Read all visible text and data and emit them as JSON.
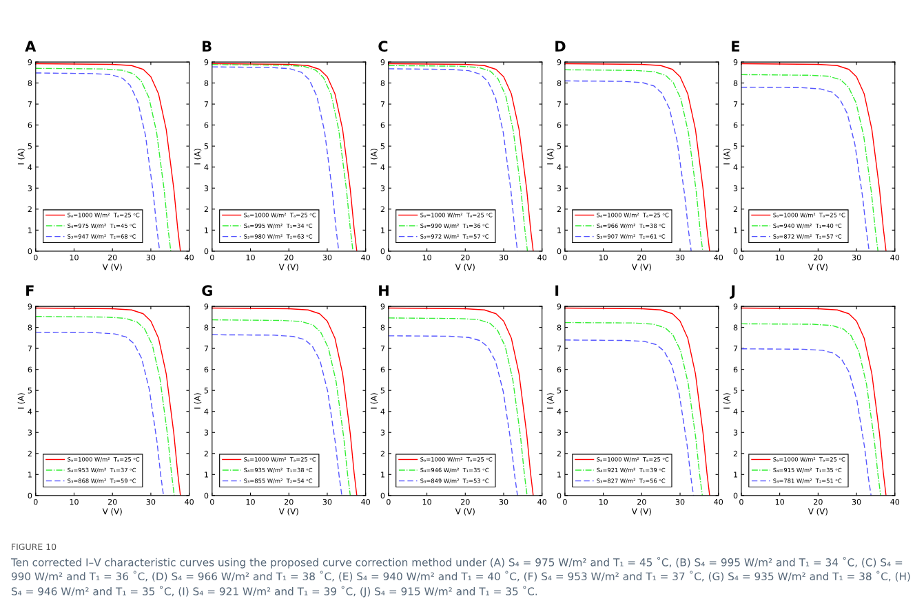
{
  "chart_data": [
    {
      "type": "line",
      "title": "A",
      "xlabel": "V (V)",
      "ylabel": "I (A)",
      "xlim": [
        0,
        40
      ],
      "ylim": [
        0,
        9
      ],
      "xticks": [
        0,
        10,
        20,
        30,
        40
      ],
      "yticks": [
        0,
        1,
        2,
        3,
        4,
        5,
        6,
        7,
        8,
        9
      ],
      "grid": false,
      "legend": "bottom left",
      "marker": "none",
      "annotations": [
        "FIGURE 10",
        "Ten corrected I–V characteristic curves using the proposed curve correction method under (A) S₄ = 975 W/m² and T₁ = 45 ˚C, (B) S₄ = 995 W/m² and T₁ = 34 ˚C, (C) S₄ = 990 W/m² and T₁ = 36 ˚C, (D) S₄ = 966 W/m² and T₁ = 38 ˚C, (E) S₄ = 940 W/m² and T₁ = 40 ˚C, (F) S₄ = 953 W/m² and T₁ = 37 ˚C, (G) S₄ = 935 W/m² and T₁ = 38 ˚C, (H) S₄ = 946 W/m² and T₁ = 35 ˚C, (I) S₄ = 921 W/m² and T₁ = 39 ˚C, (J) S₄ = 915 W/m² and T₁ = 35 ˚C."
      ],
      "series": [
        {
          "name": "Sₐ=1000 W/m²  Tₐ=25 ᵒC",
          "color": "#ff0000",
          "line_style": "solid",
          "x": [
            0,
            20,
            25,
            28,
            30,
            32,
            34,
            35,
            36,
            37,
            37.7
          ],
          "values": [
            8.92,
            8.89,
            8.83,
            8.65,
            8.3,
            7.49,
            5.8,
            4.37,
            2.94,
            1.07,
            0
          ]
        },
        {
          "name": "S₄=975 W/m²  T₁=45 ᵒC",
          "color": "#33ee33",
          "line_style": "dashdot",
          "x": [
            0,
            17.5,
            22.5,
            25.5,
            27.5,
            29.5,
            31.5,
            32.5,
            33.5,
            34.5,
            35.2
          ],
          "values": [
            8.7,
            8.67,
            8.61,
            8.44,
            8.09,
            7.31,
            5.66,
            4.26,
            2.87,
            1.04,
            0
          ]
        },
        {
          "name": "S₃=947 W/m²  T₂=68 ᵒC",
          "color": "#5555ff",
          "line_style": "dashed",
          "x": [
            0,
            14.6,
            19.6,
            22.6,
            24.6,
            26.6,
            28.6,
            29.6,
            30.6,
            31.6,
            32.3
          ],
          "values": [
            8.48,
            8.45,
            8.4,
            8.23,
            7.89,
            7.12,
            5.51,
            4.16,
            2.8,
            1.02,
            0
          ]
        }
      ]
    },
    {
      "type": "line",
      "title": "B",
      "xlabel": "V (V)",
      "ylabel": "I (A)",
      "xlim": [
        0,
        40
      ],
      "ylim": [
        0,
        9
      ],
      "xticks": [
        0,
        10,
        20,
        30,
        40
      ],
      "yticks": [
        0,
        1,
        2,
        3,
        4,
        5,
        6,
        7,
        8,
        9
      ],
      "grid": false,
      "legend": "bottom left",
      "marker": "none",
      "series": [
        {
          "name": "Sₐ=1000 W/m²  Tₐ=25 ᵒC",
          "color": "#ff0000",
          "line_style": "solid",
          "x": [
            0,
            20,
            25,
            28,
            30,
            32,
            34,
            35,
            36,
            37,
            37.7
          ],
          "values": [
            8.92,
            8.89,
            8.83,
            8.65,
            8.3,
            7.49,
            5.8,
            4.37,
            2.94,
            1.07,
            0
          ]
        },
        {
          "name": "S₄=995 W/m²  T₁=34 ᵒC",
          "color": "#33ee33",
          "line_style": "dashdot",
          "x": [
            0,
            19,
            24,
            27,
            29,
            31,
            33,
            34,
            35,
            36,
            36.7
          ],
          "values": [
            8.88,
            8.85,
            8.79,
            8.61,
            8.26,
            7.46,
            5.77,
            4.35,
            2.93,
            1.07,
            0
          ]
        },
        {
          "name": "S₃=980 W/m²  T₂=63 ᵒC",
          "color": "#5555ff",
          "line_style": "dashed",
          "x": [
            0,
            15.3,
            20.3,
            23.3,
            25.3,
            27.3,
            29.3,
            30.3,
            31.3,
            32.3,
            33.0
          ],
          "values": [
            8.77,
            8.74,
            8.68,
            8.51,
            8.16,
            7.37,
            5.7,
            4.3,
            2.89,
            1.05,
            0
          ]
        }
      ]
    },
    {
      "type": "line",
      "title": "C",
      "xlabel": "V (V)",
      "ylabel": "I (A)",
      "xlim": [
        0,
        40
      ],
      "ylim": [
        0,
        9
      ],
      "xticks": [
        0,
        10,
        20,
        30,
        40
      ],
      "yticks": [
        0,
        1,
        2,
        3,
        4,
        5,
        6,
        7,
        8,
        9
      ],
      "grid": false,
      "legend": "bottom left",
      "marker": "none",
      "series": [
        {
          "name": "Sₐ=1000 W/m²  Tₐ=25 ᵒC",
          "color": "#ff0000",
          "line_style": "solid",
          "x": [
            0,
            20,
            25,
            28,
            30,
            32,
            34,
            35,
            36,
            37,
            37.7
          ],
          "values": [
            8.92,
            8.89,
            8.83,
            8.65,
            8.3,
            7.49,
            5.8,
            4.37,
            2.94,
            1.07,
            0
          ]
        },
        {
          "name": "S₄=990 W/m²  T₁=36 ᵒC",
          "color": "#33ee33",
          "line_style": "dashdot",
          "x": [
            0,
            18.5,
            23.5,
            26.5,
            28.5,
            30.5,
            32.5,
            33.5,
            34.5,
            35.5,
            36.2
          ],
          "values": [
            8.83,
            8.8,
            8.74,
            8.57,
            8.21,
            7.42,
            5.74,
            4.33,
            2.91,
            1.06,
            0
          ]
        },
        {
          "name": "S₃=972 W/m²  T₂=57 ᵒC",
          "color": "#5555ff",
          "line_style": "dashed",
          "x": [
            0,
            15.9,
            20.9,
            23.9,
            25.9,
            27.9,
            29.9,
            30.9,
            31.9,
            32.9,
            33.6
          ],
          "values": [
            8.68,
            8.65,
            8.59,
            8.42,
            8.07,
            7.29,
            5.64,
            4.25,
            2.86,
            1.04,
            0
          ]
        }
      ]
    },
    {
      "type": "line",
      "title": "D",
      "xlabel": "V (V)",
      "ylabel": "I (A)",
      "xlim": [
        0,
        40
      ],
      "ylim": [
        0,
        9
      ],
      "xticks": [
        0,
        10,
        20,
        30,
        40
      ],
      "yticks": [
        0,
        1,
        2,
        3,
        4,
        5,
        6,
        7,
        8,
        9
      ],
      "grid": false,
      "legend": "bottom left",
      "marker": "none",
      "series": [
        {
          "name": "Sₐ=1000 W/m²  Tₐ=25 ᵒC",
          "color": "#ff0000",
          "line_style": "solid",
          "x": [
            0,
            20,
            25,
            28,
            30,
            32,
            34,
            35,
            36,
            37,
            37.7
          ],
          "values": [
            8.92,
            8.89,
            8.83,
            8.65,
            8.3,
            7.49,
            5.8,
            4.37,
            2.94,
            1.07,
            0
          ]
        },
        {
          "name": "S₄=966 W/m²  T₁=38 ᵒC",
          "color": "#33ee33",
          "line_style": "dashdot",
          "x": [
            0,
            18.2,
            23.2,
            26.2,
            28.2,
            30.2,
            32.2,
            33.2,
            34.2,
            35.2,
            35.9
          ],
          "values": [
            8.63,
            8.6,
            8.54,
            8.37,
            8.03,
            7.25,
            5.61,
            4.23,
            2.85,
            1.04,
            0
          ]
        },
        {
          "name": "S₃=907 W/m²  T₂=61 ᵒC",
          "color": "#5555ff",
          "line_style": "dashed",
          "x": [
            0,
            15.2,
            20.2,
            23.2,
            25.2,
            27.2,
            29.2,
            30.2,
            31.2,
            32.2,
            32.9
          ],
          "values": [
            8.1,
            8.08,
            8.02,
            7.86,
            7.53,
            6.8,
            5.27,
            3.97,
            2.67,
            0.97,
            0
          ]
        }
      ]
    },
    {
      "type": "line",
      "title": "E",
      "xlabel": "V (V)",
      "ylabel": "I (A)",
      "xlim": [
        0,
        40
      ],
      "ylim": [
        0,
        9
      ],
      "xticks": [
        0,
        10,
        20,
        30,
        40
      ],
      "yticks": [
        0,
        1,
        2,
        3,
        4,
        5,
        6,
        7,
        8,
        9
      ],
      "grid": false,
      "legend": "bottom left",
      "marker": "none",
      "series": [
        {
          "name": "Sₐ=1000 W/m²  Tₐ=25 ᵒC",
          "color": "#ff0000",
          "line_style": "solid",
          "x": [
            0,
            20,
            25,
            28,
            30,
            32,
            34,
            35,
            36,
            37,
            37.7
          ],
          "values": [
            8.92,
            8.89,
            8.83,
            8.65,
            8.3,
            7.49,
            5.8,
            4.37,
            2.94,
            1.07,
            0
          ]
        },
        {
          "name": "S₄=940 W/m²  T₁=40 ᵒC",
          "color": "#33ee33",
          "line_style": "dashdot",
          "x": [
            0,
            17.9,
            22.9,
            25.9,
            27.9,
            29.9,
            31.9,
            32.9,
            33.9,
            34.9,
            35.6
          ],
          "values": [
            8.4,
            8.37,
            8.32,
            8.15,
            7.81,
            7.06,
            5.46,
            4.12,
            2.77,
            1.01,
            0
          ]
        },
        {
          "name": "S₃=872 W/m²  T₂=57 ᵒC",
          "color": "#5555ff",
          "line_style": "dashed",
          "x": [
            0,
            15.6,
            20.6,
            23.6,
            25.6,
            27.6,
            29.6,
            30.6,
            31.6,
            32.6,
            33.3
          ],
          "values": [
            7.8,
            7.78,
            7.72,
            7.57,
            7.25,
            6.55,
            5.07,
            3.82,
            2.57,
            0.94,
            0
          ]
        }
      ]
    },
    {
      "type": "line",
      "title": "F",
      "xlabel": "V (V)",
      "ylabel": "I (A)",
      "xlim": [
        0,
        40
      ],
      "ylim": [
        0,
        9
      ],
      "xticks": [
        0,
        10,
        20,
        30,
        40
      ],
      "yticks": [
        0,
        1,
        2,
        3,
        4,
        5,
        6,
        7,
        8,
        9
      ],
      "grid": false,
      "legend": "bottom left",
      "marker": "none",
      "series": [
        {
          "name": "Sₐ=1000 W/m²  Tₐ=25 ᵒC",
          "color": "#ff0000",
          "line_style": "solid",
          "x": [
            0,
            20,
            25,
            28,
            30,
            32,
            34,
            35,
            36,
            37,
            37.7
          ],
          "values": [
            8.92,
            8.89,
            8.83,
            8.65,
            8.3,
            7.49,
            5.8,
            4.37,
            2.94,
            1.07,
            0
          ]
        },
        {
          "name": "S₄=953 W/m²  T₁=37 ᵒC",
          "color": "#33ee33",
          "line_style": "dashdot",
          "x": [
            0,
            18.4,
            23.4,
            26.4,
            28.4,
            30.4,
            32.4,
            33.4,
            34.4,
            35.4,
            36.1
          ],
          "values": [
            8.52,
            8.49,
            8.43,
            8.26,
            7.92,
            7.16,
            5.54,
            4.17,
            2.81,
            1.02,
            0
          ]
        },
        {
          "name": "S₃=868 W/m²  T₂=59 ᵒC",
          "color": "#5555ff",
          "line_style": "dashed",
          "x": [
            0,
            15.6,
            20.6,
            23.6,
            25.6,
            27.6,
            29.6,
            30.6,
            31.6,
            32.6,
            33.3
          ],
          "values": [
            7.77,
            7.75,
            7.69,
            7.54,
            7.23,
            6.53,
            5.05,
            3.81,
            2.56,
            0.93,
            0
          ]
        }
      ]
    },
    {
      "type": "line",
      "title": "G",
      "xlabel": "V (V)",
      "ylabel": "I (A)",
      "xlim": [
        0,
        40
      ],
      "ylim": [
        0,
        9
      ],
      "xticks": [
        0,
        10,
        20,
        30,
        40
      ],
      "yticks": [
        0,
        1,
        2,
        3,
        4,
        5,
        6,
        7,
        8,
        9
      ],
      "grid": false,
      "legend": "bottom left",
      "marker": "none",
      "series": [
        {
          "name": "Sₐ=1000 W/m²  Tₐ=25 ᵒC",
          "color": "#ff0000",
          "line_style": "solid",
          "x": [
            0,
            20,
            25,
            28,
            30,
            32,
            34,
            35,
            36,
            37,
            37.7
          ],
          "values": [
            8.92,
            8.89,
            8.83,
            8.65,
            8.3,
            7.49,
            5.8,
            4.37,
            2.94,
            1.07,
            0
          ]
        },
        {
          "name": "S₄=935 W/m²  T₁=38 ᵒC",
          "color": "#33ee33",
          "line_style": "dashdot",
          "x": [
            0,
            18.3,
            23.3,
            26.3,
            28.3,
            30.3,
            32.3,
            33.3,
            34.3,
            35.3,
            36.0
          ],
          "values": [
            8.36,
            8.33,
            8.28,
            8.11,
            7.77,
            7.02,
            5.43,
            4.1,
            2.76,
            1.0,
            0
          ]
        },
        {
          "name": "S₃=855 W/m²  T₂=54 ᵒC",
          "color": "#5555ff",
          "line_style": "dashed",
          "x": [
            0,
            16.1,
            21.1,
            24.1,
            26.1,
            28.1,
            30.1,
            31.1,
            32.1,
            33.1,
            33.8
          ],
          "values": [
            7.65,
            7.63,
            7.57,
            7.42,
            7.11,
            6.43,
            4.97,
            3.75,
            2.52,
            0.92,
            0
          ]
        }
      ]
    },
    {
      "type": "line",
      "title": "H",
      "xlabel": "V (V)",
      "ylabel": "I (A)",
      "xlim": [
        0,
        40
      ],
      "ylim": [
        0,
        9
      ],
      "xticks": [
        0,
        10,
        20,
        30,
        40
      ],
      "yticks": [
        0,
        1,
        2,
        3,
        4,
        5,
        6,
        7,
        8,
        9
      ],
      "grid": false,
      "legend": "bottom left",
      "marker": "none",
      "series": [
        {
          "name": "Sₐ=1000 W/m²  Tₐ=25 ᵒC",
          "color": "#ff0000",
          "line_style": "solid",
          "x": [
            0,
            20,
            25,
            28,
            30,
            32,
            34,
            35,
            36,
            37,
            37.7
          ],
          "values": [
            8.92,
            8.89,
            8.83,
            8.65,
            8.3,
            7.49,
            5.8,
            4.37,
            2.94,
            1.07,
            0
          ]
        },
        {
          "name": "S₄=946 W/m²  T₁=35 ᵒC",
          "color": "#33ee33",
          "line_style": "dashdot",
          "x": [
            0,
            18.4,
            23.4,
            26.4,
            28.4,
            30.4,
            32.4,
            33.4,
            34.4,
            35.4,
            36.1
          ],
          "values": [
            8.45,
            8.42,
            8.37,
            8.2,
            7.86,
            7.1,
            5.49,
            4.14,
            2.79,
            1.01,
            0
          ]
        },
        {
          "name": "S₃=849 W/m²  T₂=53 ᵒC",
          "color": "#5555ff",
          "line_style": "dashed",
          "x": [
            0,
            15.9,
            20.9,
            23.9,
            25.9,
            27.9,
            29.9,
            30.9,
            31.9,
            32.9,
            33.6
          ],
          "values": [
            7.6,
            7.58,
            7.52,
            7.37,
            7.07,
            6.38,
            4.94,
            3.72,
            2.51,
            0.91,
            0
          ]
        }
      ]
    },
    {
      "type": "line",
      "title": "I",
      "xlabel": "V (V)",
      "ylabel": "I (A)",
      "xlim": [
        0,
        40
      ],
      "ylim": [
        0,
        9
      ],
      "xticks": [
        0,
        10,
        20,
        30,
        40
      ],
      "yticks": [
        0,
        1,
        2,
        3,
        4,
        5,
        6,
        7,
        8,
        9
      ],
      "grid": false,
      "legend": "bottom left",
      "marker": "none",
      "series": [
        {
          "name": "Sₐ=1000 W/m²  Tₐ=25 ᵒC",
          "color": "#ff0000",
          "line_style": "solid",
          "x": [
            0,
            20,
            25,
            28,
            30,
            32,
            34,
            35,
            36,
            37,
            37.7
          ],
          "values": [
            8.92,
            8.89,
            8.83,
            8.65,
            8.3,
            7.49,
            5.8,
            4.37,
            2.94,
            1.07,
            0
          ]
        },
        {
          "name": "S₄=921 W/m²  T₁=39 ᵒC",
          "color": "#33ee33",
          "line_style": "dashdot",
          "x": [
            0,
            18.1,
            23.1,
            26.1,
            28.1,
            30.1,
            32.1,
            33.1,
            34.1,
            35.1,
            35.8
          ],
          "values": [
            8.23,
            8.21,
            8.15,
            7.98,
            7.65,
            6.91,
            5.35,
            4.03,
            2.72,
            0.99,
            0
          ]
        },
        {
          "name": "S₃=827 W/m²  T₂=56 ᵒC",
          "color": "#5555ff",
          "line_style": "dashed",
          "x": [
            0,
            15.8,
            20.8,
            23.8,
            25.8,
            27.8,
            29.8,
            30.8,
            31.8,
            32.8,
            33.5
          ],
          "values": [
            7.4,
            7.38,
            7.33,
            7.18,
            6.88,
            6.22,
            4.81,
            3.63,
            2.44,
            0.89,
            0
          ]
        }
      ]
    },
    {
      "type": "line",
      "title": "J",
      "xlabel": "V (V)",
      "ylabel": "I (A)",
      "xlim": [
        0,
        40
      ],
      "ylim": [
        0,
        9
      ],
      "xticks": [
        0,
        10,
        20,
        30,
        40
      ],
      "yticks": [
        0,
        1,
        2,
        3,
        4,
        5,
        6,
        7,
        8,
        9
      ],
      "grid": false,
      "legend": "bottom left",
      "marker": "none",
      "series": [
        {
          "name": "Sₐ=1000 W/m²  Tₐ=25 ᵒC",
          "color": "#ff0000",
          "line_style": "solid",
          "x": [
            0,
            20,
            25,
            28,
            30,
            32,
            34,
            35,
            36,
            37,
            37.7
          ],
          "values": [
            8.92,
            8.89,
            8.83,
            8.65,
            8.3,
            7.49,
            5.8,
            4.37,
            2.94,
            1.07,
            0
          ]
        },
        {
          "name": "S₄=915 W/m²  T₁=35 ᵒC",
          "color": "#33ee33",
          "line_style": "dashdot",
          "x": [
            0,
            18.6,
            23.6,
            26.6,
            28.6,
            30.6,
            32.6,
            33.6,
            34.6,
            35.6,
            36.3
          ],
          "values": [
            8.17,
            8.15,
            8.09,
            7.92,
            7.6,
            6.86,
            5.31,
            4.0,
            2.7,
            0.98,
            0
          ]
        },
        {
          "name": "S₃=781 W/m²  T₂=51 ᵒC",
          "color": "#5555ff",
          "line_style": "dashed",
          "x": [
            0,
            16.1,
            21.1,
            24.1,
            26.1,
            28.1,
            30.1,
            31.1,
            32.1,
            33.1,
            33.8
          ],
          "values": [
            6.98,
            6.96,
            6.91,
            6.77,
            6.49,
            5.86,
            4.54,
            3.42,
            2.3,
            0.84,
            0
          ]
        }
      ]
    }
  ]
}
